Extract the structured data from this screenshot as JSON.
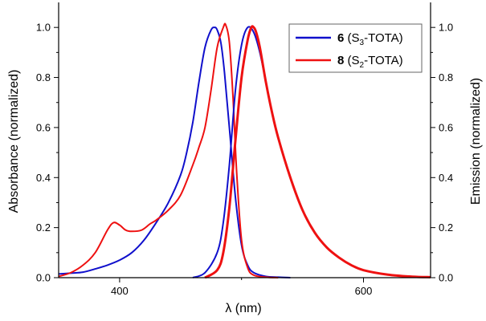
{
  "chart_data": {
    "type": "line",
    "title": "",
    "xlabel": "λ (nm)",
    "ylabel_left": "Absorbance (normalized)",
    "ylabel_right": "Emission (normalized)",
    "xlim": [
      350,
      655
    ],
    "ylim": [
      0,
      1.1
    ],
    "x_ticks": [
      400,
      600
    ],
    "y_ticks": [
      0.0,
      0.2,
      0.4,
      0.6,
      0.8,
      1.0
    ],
    "y_tick_labels": [
      "0.0",
      "0.2",
      "0.4",
      "0.6",
      "0.8",
      "1.0"
    ],
    "grid": false,
    "legend": {
      "position": "top-right",
      "entries": [
        {
          "id": "6",
          "bold": "6",
          "text_pre": " (S",
          "sub": "3",
          "text_post": "-TOTA)",
          "color": "#1010cc"
        },
        {
          "id": "8",
          "bold": "8",
          "text_pre": " (S",
          "sub": "2",
          "text_post": "-TOTA)",
          "color": "#ee1111"
        }
      ]
    },
    "series": [
      {
        "name": "6 (S3-TOTA) absorbance",
        "compound": "6",
        "kind": "absorbance",
        "color": "#1010cc",
        "x": [
          350,
          360,
          370,
          380,
          390,
          400,
          410,
          420,
          430,
          440,
          450,
          455,
          460,
          465,
          470,
          475,
          478,
          480,
          483,
          486,
          490,
          495,
          500,
          505,
          510,
          520,
          530,
          540
        ],
        "y": [
          0.015,
          0.018,
          0.022,
          0.035,
          0.05,
          0.07,
          0.1,
          0.15,
          0.22,
          0.3,
          0.41,
          0.5,
          0.62,
          0.78,
          0.92,
          0.99,
          1.0,
          0.99,
          0.94,
          0.82,
          0.6,
          0.32,
          0.13,
          0.05,
          0.02,
          0.005,
          0.002,
          0.0
        ]
      },
      {
        "name": "8 (S2-TOTA) absorbance",
        "compound": "8",
        "kind": "absorbance",
        "color": "#ee1111",
        "x": [
          350,
          360,
          370,
          380,
          390,
          395,
          400,
          405,
          410,
          418,
          425,
          430,
          440,
          450,
          460,
          465,
          470,
          475,
          480,
          485,
          487,
          490,
          493,
          496,
          500,
          505,
          510,
          520,
          530
        ],
        "y": [
          0.005,
          0.02,
          0.05,
          0.1,
          0.19,
          0.22,
          0.21,
          0.19,
          0.185,
          0.19,
          0.215,
          0.23,
          0.27,
          0.33,
          0.45,
          0.52,
          0.6,
          0.75,
          0.92,
          1.0,
          1.01,
          0.94,
          0.72,
          0.42,
          0.15,
          0.04,
          0.01,
          0.002,
          0.0
        ]
      },
      {
        "name": "6 (S3-TOTA) emission",
        "compound": "6",
        "kind": "emission",
        "color": "#1010cc",
        "x": [
          460,
          470,
          480,
          485,
          490,
          495,
          500,
          505,
          510,
          515,
          520,
          525,
          530,
          540,
          550,
          560,
          570,
          580,
          590,
          600,
          620,
          640,
          655
        ],
        "y": [
          0.0,
          0.02,
          0.1,
          0.22,
          0.45,
          0.75,
          0.93,
          1.0,
          0.98,
          0.9,
          0.78,
          0.66,
          0.56,
          0.4,
          0.27,
          0.18,
          0.12,
          0.08,
          0.05,
          0.03,
          0.012,
          0.004,
          0.002
        ]
      },
      {
        "name": "8 (S2-TOTA) emission",
        "compound": "8",
        "kind": "emission",
        "color": "#ee1111",
        "x": [
          470,
          480,
          485,
          490,
          495,
          500,
          505,
          508,
          510,
          512,
          515,
          520,
          525,
          530,
          540,
          550,
          560,
          570,
          580,
          590,
          600,
          620,
          640,
          655
        ],
        "y": [
          0.0,
          0.03,
          0.1,
          0.28,
          0.55,
          0.8,
          0.95,
          1.0,
          1.0,
          0.98,
          0.92,
          0.78,
          0.66,
          0.56,
          0.4,
          0.27,
          0.18,
          0.12,
          0.08,
          0.05,
          0.03,
          0.012,
          0.004,
          0.002
        ]
      }
    ]
  }
}
